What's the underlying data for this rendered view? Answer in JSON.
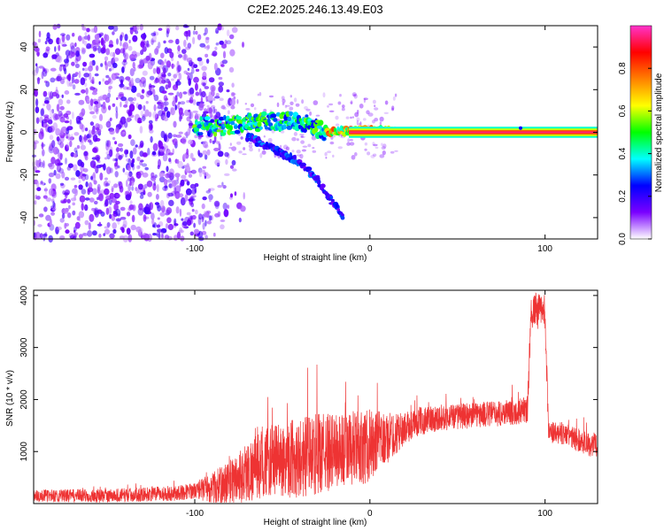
{
  "chart_data": [
    {
      "type": "heatmap",
      "title": "C2E2.2025.246.13.49.E03",
      "xlabel": "Height of straight line (km)",
      "ylabel": "Frequency (Hz)",
      "xlim": [
        -192,
        130
      ],
      "ylim": [
        -50,
        50
      ],
      "x_ticks": [
        -100,
        0,
        100
      ],
      "y_ticks": [
        -40,
        -20,
        0,
        20,
        40
      ],
      "colorbar": {
        "label": "Normalized spectral amplitude",
        "range": [
          0,
          1
        ],
        "ticks": [
          0.0,
          0.2,
          0.4,
          0.6,
          0.8
        ],
        "ticklabels": [
          "0.0",
          "0.2",
          "0.4",
          "0.6",
          "0.8"
        ],
        "colormap": [
          "#ffffff",
          "#7a00ff",
          "#0000ff",
          "#00ffff",
          "#00ff00",
          "#ffff00",
          "#ff8000",
          "#ff0000",
          "#ff33cc"
        ]
      },
      "features": {
        "noise_region_x": [
          -192,
          -95
        ],
        "noise_amplitude": 0.15,
        "carrier_frequency_hz": 0,
        "carrier_amplitude": 0.95,
        "main_branch": [
          [
            -100,
            3
          ],
          [
            -80,
            3
          ],
          [
            -60,
            5
          ],
          [
            -40,
            5
          ],
          [
            -25,
            0
          ],
          [
            -10,
            1
          ],
          [
            5,
            1
          ],
          [
            20,
            0
          ],
          [
            130,
            0
          ]
        ],
        "descending_branch": [
          [
            -70,
            -2
          ],
          [
            -55,
            -8
          ],
          [
            -40,
            -14
          ],
          [
            -30,
            -22
          ],
          [
            -22,
            -32
          ],
          [
            -15,
            -40
          ]
        ],
        "spur_x": 86
      }
    },
    {
      "type": "line",
      "xlabel": "Height of straight line (km)",
      "ylabel": "SNR (10 * v/v)",
      "xlim": [
        -192,
        130
      ],
      "ylim": [
        0,
        4100
      ],
      "x_ticks": [
        -100,
        0,
        100
      ],
      "y_ticks": [
        1000,
        2000,
        3000,
        4000
      ],
      "color": "#ee3333",
      "envelope": [
        [
          -192,
          150
        ],
        [
          -150,
          150
        ],
        [
          -110,
          200
        ],
        [
          -90,
          300
        ],
        [
          -80,
          400
        ],
        [
          -70,
          600
        ],
        [
          -60,
          800
        ],
        [
          -40,
          900
        ],
        [
          -20,
          1000
        ],
        [
          0,
          1100
        ],
        [
          10,
          1250
        ],
        [
          20,
          1450
        ],
        [
          30,
          1600
        ],
        [
          40,
          1650
        ],
        [
          60,
          1700
        ],
        [
          80,
          1750
        ],
        [
          90,
          1800
        ],
        [
          92,
          3700
        ],
        [
          100,
          3700
        ],
        [
          102,
          1350
        ],
        [
          110,
          1350
        ],
        [
          120,
          1200
        ],
        [
          130,
          1100
        ]
      ],
      "noise_band": [
        [
          -192,
          120
        ],
        [
          -100,
          150
        ],
        [
          -70,
          600
        ],
        [
          -40,
          800
        ],
        [
          0,
          700
        ],
        [
          20,
          300
        ],
        [
          40,
          250
        ],
        [
          88,
          250
        ],
        [
          93,
          350
        ],
        [
          100,
          350
        ],
        [
          102,
          200
        ],
        [
          130,
          250
        ]
      ]
    }
  ]
}
